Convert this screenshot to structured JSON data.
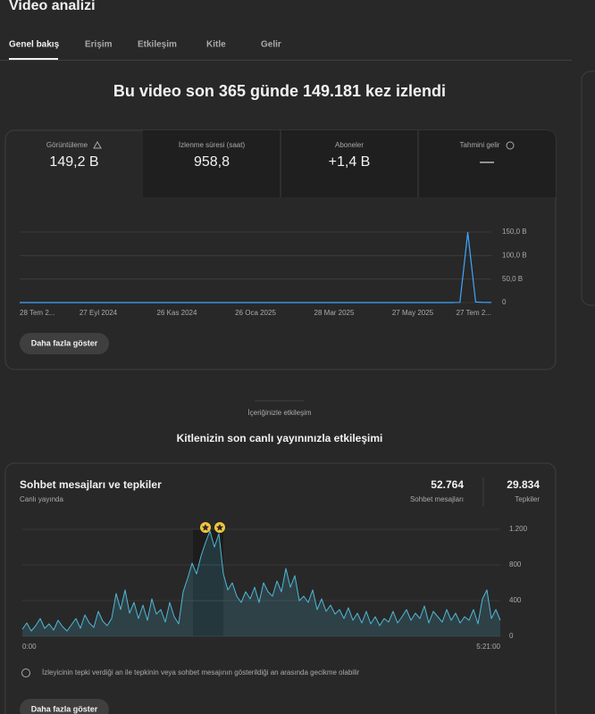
{
  "header": {
    "title": "Video analizi"
  },
  "tabs": [
    "Genel bakış",
    "Erişim",
    "Etkileşim",
    "Kitle",
    "Gelir"
  ],
  "headline": "Bu video son 365 günde 149.181 kez izlendi",
  "metrics": [
    {
      "label": "Görüntüleme",
      "value": "149,2 B"
    },
    {
      "label": "İzlenme süresi (saat)",
      "value": "958,8"
    },
    {
      "label": "Aboneler",
      "value": "+1,4 B"
    },
    {
      "label": "Tahmini gelir",
      "value": "—"
    }
  ],
  "button": "Daha fazla göster",
  "section_label": "İçeriğinizle etkileşim",
  "section_title": "Kitlenizin son canlı yayınınızla etkileşimi",
  "card": {
    "title": "Sohbet mesajları ve tepkiler",
    "subtitle": "Canlı yayında",
    "stats": [
      {
        "value": "52.764",
        "label": "Sohbet mesajları"
      },
      {
        "value": "29.834",
        "label": "Tepkiler"
      }
    ]
  },
  "note": "İzleyicinin tepki verdiği an ile tepkinin veya sohbet mesajının gösterildiği an arasında gecikme olabilir",
  "button2": "Daha fazla göster",
  "chart_data": [
    {
      "type": "line",
      "color": "#3ea6ff",
      "xtick_labels": [
        "28 Tem 2...",
        "27 Eyl 2024",
        "26 Kas 2024",
        "26 Oca 2025",
        "28 Mar 2025",
        "27 May 2025",
        "27 Tem 2..."
      ],
      "values": [
        0,
        0,
        0,
        0,
        0,
        0,
        0,
        0,
        0,
        0,
        0,
        0,
        0,
        0,
        0,
        0,
        0,
        0,
        0,
        0,
        0,
        0,
        0,
        0,
        0,
        0,
        0,
        0,
        0,
        0,
        0,
        0,
        0,
        0,
        0,
        0,
        0,
        0,
        0,
        0,
        0,
        0,
        0,
        0,
        0,
        0,
        0,
        0,
        0,
        0,
        0,
        0,
        0,
        0,
        0,
        0,
        0.3,
        149,
        1.2,
        0.4,
        0.2
      ],
      "ylim": [
        0,
        150
      ],
      "yticks": [
        0,
        {
          "value": 50,
          "label": "50,0 B"
        },
        {
          "value": 100,
          "label": "100,0 B"
        },
        {
          "value": 150,
          "label": "150,0 B"
        }
      ],
      "grid": true
    },
    {
      "type": "area",
      "color": "#4fb8d6",
      "xtick_labels": [
        "0:00",
        "5:21:00"
      ],
      "values": [
        80,
        150,
        60,
        120,
        200,
        90,
        140,
        70,
        180,
        110,
        60,
        130,
        200,
        90,
        240,
        150,
        100,
        280,
        170,
        120,
        200,
        480,
        300,
        520,
        260,
        380,
        200,
        350,
        180,
        420,
        250,
        300,
        160,
        380,
        220,
        140,
        500,
        650,
        820,
        700,
        900,
        1050,
        1180,
        1000,
        1150,
        700,
        520,
        600,
        450,
        380,
        500,
        420,
        550,
        380,
        600,
        500,
        450,
        620,
        500,
        760,
        550,
        680,
        400,
        450,
        380,
        520,
        300,
        420,
        280,
        350,
        250,
        300,
        200,
        320,
        180,
        260,
        150,
        280,
        140,
        220,
        120,
        200,
        160,
        280,
        150,
        220,
        300,
        180,
        260,
        200,
        340,
        150,
        280,
        220,
        160,
        300,
        180,
        260,
        150,
        220,
        180,
        300,
        140,
        420,
        520,
        200,
        300,
        180
      ],
      "ylim": [
        0,
        1200
      ],
      "yticks": [
        0,
        400,
        800,
        {
          "value": 1200,
          "label": "1.200"
        }
      ],
      "grid": true
    }
  ]
}
